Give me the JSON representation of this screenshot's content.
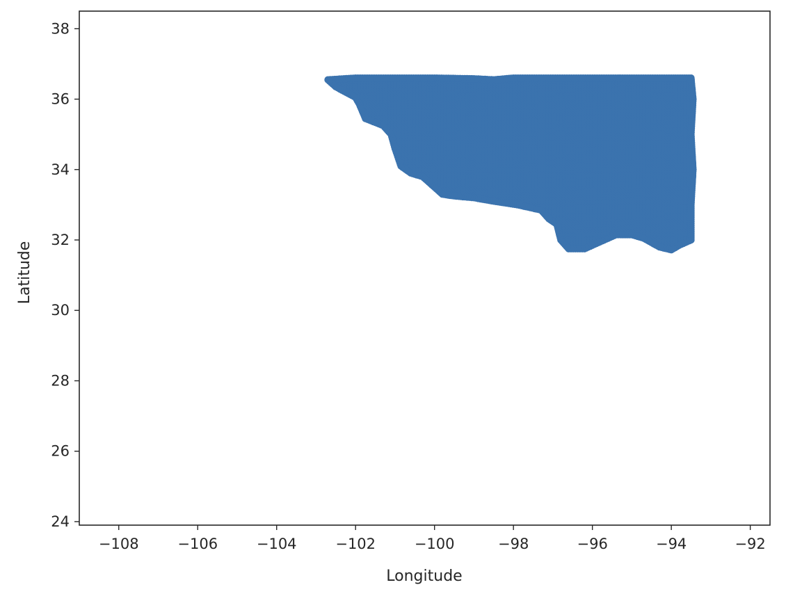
{
  "chart_data": {
    "type": "scatter",
    "title": "",
    "xlabel": "Longitude",
    "ylabel": "Latitude",
    "xlim": [
      -109.0,
      -91.5
    ],
    "ylim": [
      23.9,
      38.5
    ],
    "xticks": [
      -108,
      -106,
      -104,
      -102,
      -100,
      -98,
      -96,
      -94,
      -92
    ],
    "yticks": [
      24,
      26,
      28,
      30,
      32,
      34,
      36,
      38
    ],
    "xtick_labels": [
      "−108",
      "−106",
      "−104",
      "−102",
      "−100",
      "−98",
      "−96",
      "−94",
      "−92"
    ],
    "ytick_labels": [
      "24",
      "26",
      "28",
      "30",
      "32",
      "34",
      "36",
      "38"
    ],
    "grid": false,
    "legend": "none",
    "series": [
      {
        "color": "#3b73ae",
        "marker": "circle",
        "extent": {
          "lon_min": -102.7,
          "lon_max": -93.5,
          "lat_min": 31.7,
          "lat_max": 36.6
        },
        "boundary": [
          [
            -102.7,
            36.55
          ],
          [
            -102.0,
            36.6
          ],
          [
            -101.0,
            36.6
          ],
          [
            -100.0,
            36.6
          ],
          [
            -99.0,
            36.58
          ],
          [
            -98.5,
            36.55
          ],
          [
            -98.0,
            36.6
          ],
          [
            -97.0,
            36.6
          ],
          [
            -96.0,
            36.6
          ],
          [
            -95.0,
            36.6
          ],
          [
            -94.0,
            36.6
          ],
          [
            -93.5,
            36.6
          ],
          [
            -93.45,
            36.0
          ],
          [
            -93.5,
            35.0
          ],
          [
            -93.45,
            34.0
          ],
          [
            -93.5,
            33.0
          ],
          [
            -93.5,
            32.0
          ],
          [
            -93.8,
            31.85
          ],
          [
            -94.0,
            31.72
          ],
          [
            -94.3,
            31.8
          ],
          [
            -94.7,
            32.05
          ],
          [
            -95.0,
            32.15
          ],
          [
            -95.4,
            32.15
          ],
          [
            -95.8,
            31.95
          ],
          [
            -96.2,
            31.75
          ],
          [
            -96.6,
            31.75
          ],
          [
            -96.8,
            32.0
          ],
          [
            -96.9,
            32.45
          ],
          [
            -97.1,
            32.6
          ],
          [
            -97.3,
            32.85
          ],
          [
            -97.9,
            33.0
          ],
          [
            -98.5,
            33.1
          ],
          [
            -99.0,
            33.2
          ],
          [
            -99.5,
            33.25
          ],
          [
            -99.8,
            33.3
          ],
          [
            -100.1,
            33.6
          ],
          [
            -100.3,
            33.8
          ],
          [
            -100.6,
            33.9
          ],
          [
            -100.85,
            34.1
          ],
          [
            -101.0,
            34.6
          ],
          [
            -101.1,
            35.0
          ],
          [
            -101.3,
            35.25
          ],
          [
            -101.75,
            35.45
          ],
          [
            -101.9,
            35.85
          ],
          [
            -102.0,
            36.05
          ],
          [
            -102.5,
            36.35
          ],
          [
            -102.7,
            36.55
          ]
        ]
      }
    ]
  }
}
